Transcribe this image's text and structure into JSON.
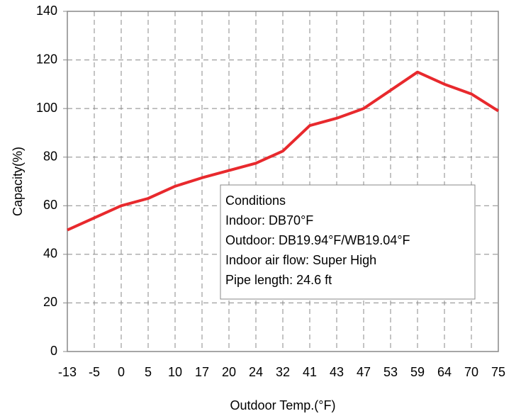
{
  "chart_data": {
    "type": "line",
    "x_label": "Outdoor Temp.(°F)",
    "y_label": "Capacity(%)",
    "categories": [
      "-13",
      "-5",
      "0",
      "5",
      "10",
      "17",
      "20",
      "24",
      "32",
      "41",
      "43",
      "47",
      "53",
      "59",
      "64",
      "70",
      "75"
    ],
    "series": [
      {
        "name": "Capacity",
        "color": "#e8292d",
        "values": [
          50,
          55,
          60,
          63,
          68,
          71.5,
          74.5,
          77.5,
          82.5,
          93,
          96,
          100,
          107.5,
          115,
          110,
          106,
          99
        ]
      }
    ],
    "ylim": [
      0,
      140
    ],
    "yticks": [
      0,
      20,
      40,
      60,
      80,
      100,
      120,
      140
    ],
    "grid": true,
    "annotation": [
      "Conditions",
      "Indoor: DB70°F",
      "Outdoor: DB19.94°F/WB19.04°F",
      "Indoor air flow: Super High",
      "Pipe length: 24.6 ft"
    ]
  }
}
